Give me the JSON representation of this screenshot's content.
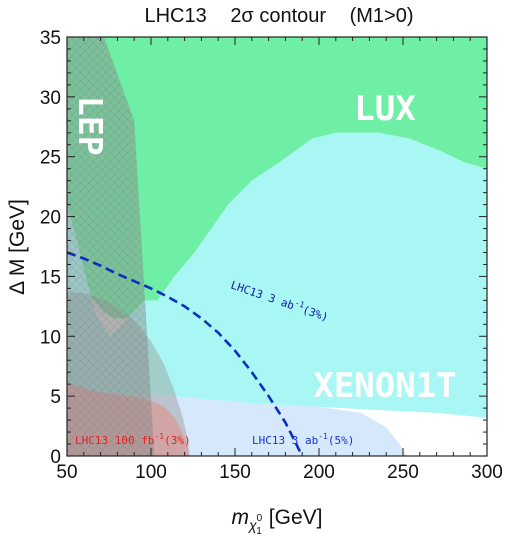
{
  "chart_data": {
    "type": "area",
    "title_parts": {
      "collider": "LHC13",
      "sigma": "2σ contour",
      "sign": "(M1>0)"
    },
    "xlabel": {
      "prefix": "m",
      "sub": "χ",
      "sub_sup": "0",
      "sub_sub": "1",
      "unit": "[GeV]"
    },
    "ylabel": "Δ M [GeV]",
    "xlim": [
      50,
      300
    ],
    "ylim": [
      0,
      35
    ],
    "xticks": [
      "50",
      "100",
      "150",
      "200",
      "250",
      "300"
    ],
    "yticks": [
      "0",
      "5",
      "10",
      "15",
      "20",
      "25",
      "30",
      "35"
    ],
    "grid": false,
    "region_labels": {
      "lux": "LUX",
      "xenon": "XENON1T",
      "lep": "LEP"
    },
    "curve_labels": {
      "lhc100": {
        "base": "LHC13 100 fb",
        "sup": "-1",
        "tail": "(3%)"
      },
      "lhc3ab5": {
        "base": "LHC13 3 ab",
        "sup": "-1",
        "tail": "(5%)"
      },
      "lhc3ab3": {
        "base": "LHC13 3 ab",
        "sup": "-1",
        "tail": "(3%)"
      }
    },
    "regions": {
      "lux": {
        "color": "#6feea6",
        "points": [
          [
            50,
            35
          ],
          [
            300,
            35
          ],
          [
            300,
            24
          ],
          [
            287,
            24.5
          ],
          [
            272,
            25.5
          ],
          [
            254,
            26.5
          ],
          [
            236,
            27
          ],
          [
            210,
            27
          ],
          [
            196,
            26.5
          ],
          [
            176,
            24.5
          ],
          [
            160,
            23
          ],
          [
            146,
            21
          ],
          [
            136,
            19
          ],
          [
            126,
            17
          ],
          [
            114,
            15
          ],
          [
            104,
            13
          ],
          [
            96,
            12
          ],
          [
            86,
            11.5
          ],
          [
            78,
            11.5
          ],
          [
            72,
            12
          ],
          [
            66,
            13
          ],
          [
            58,
            14
          ],
          [
            50,
            14.7
          ]
        ]
      },
      "xenon": {
        "color": "#a8f7f4",
        "points": [
          [
            50,
            21
          ],
          [
            56,
            18
          ],
          [
            62,
            14.5
          ],
          [
            68,
            11.5
          ],
          [
            76,
            10
          ],
          [
            86,
            11.5
          ],
          [
            96,
            13
          ],
          [
            104,
            13
          ],
          [
            114,
            15
          ],
          [
            126,
            17
          ],
          [
            136,
            19
          ],
          [
            146,
            21
          ],
          [
            160,
            23
          ],
          [
            176,
            24.5
          ],
          [
            196,
            26.5
          ],
          [
            210,
            27
          ],
          [
            236,
            27
          ],
          [
            254,
            26.5
          ],
          [
            272,
            25.5
          ],
          [
            287,
            24.5
          ],
          [
            300,
            24
          ],
          [
            300,
            3.2
          ],
          [
            270,
            3.6
          ],
          [
            240,
            3.8
          ],
          [
            200,
            4.1
          ],
          [
            160,
            4.4
          ],
          [
            120,
            4.9
          ],
          [
            100,
            5.2
          ],
          [
            90,
            5.1
          ],
          [
            80,
            4.9
          ],
          [
            70,
            5
          ],
          [
            60,
            5.1
          ],
          [
            50,
            5.1
          ]
        ]
      },
      "lhc3ab5": {
        "color": "#d6e8fb",
        "points": [
          [
            50,
            5.4
          ],
          [
            60,
            5.2
          ],
          [
            70,
            5
          ],
          [
            80,
            4.9
          ],
          [
            90,
            5.1
          ],
          [
            100,
            5.2
          ],
          [
            120,
            4.9
          ],
          [
            160,
            4.4
          ],
          [
            200,
            4.1
          ],
          [
            225,
            3.6
          ],
          [
            240,
            2.4
          ],
          [
            248,
            1
          ],
          [
            252,
            0
          ],
          [
            50,
            0
          ]
        ]
      },
      "lhc100": {
        "color": "#ffb0b0",
        "points": [
          [
            50,
            6
          ],
          [
            56,
            5.9
          ],
          [
            62,
            5.6
          ],
          [
            72,
            5.3
          ],
          [
            82,
            5.1
          ],
          [
            92,
            4.9
          ],
          [
            100,
            4.6
          ],
          [
            108,
            4.1
          ],
          [
            114,
            3.2
          ],
          [
            118,
            2.2
          ],
          [
            121,
            1.2
          ],
          [
            123,
            0
          ],
          [
            50,
            0
          ]
        ]
      },
      "lep": {
        "color": "#8a8a8a",
        "opacity": 0.45,
        "points": [
          [
            50,
            35
          ],
          [
            72,
            35
          ],
          [
            90,
            28
          ],
          [
            102,
            0
          ],
          [
            50,
            0
          ]
        ]
      },
      "lhc_gray": {
        "color": "#9a9a9a",
        "opacity": 0.45,
        "points": [
          [
            50,
            13.7
          ],
          [
            60,
            13.6
          ],
          [
            70,
            13.2
          ],
          [
            80,
            12.4
          ],
          [
            90,
            11.3
          ],
          [
            100,
            9.6
          ],
          [
            108,
            7.6
          ],
          [
            114,
            5.4
          ],
          [
            119,
            3.2
          ],
          [
            122,
            1.3
          ],
          [
            123,
            0
          ],
          [
            50,
            0
          ]
        ]
      }
    },
    "series": [
      {
        "name": "LHC13 3 ab-1 (3%)",
        "style": "dashed",
        "color": "#0b2fc0",
        "x": [
          50,
          60,
          70,
          80,
          90,
          100,
          110,
          120,
          130,
          140,
          150,
          160,
          170,
          180,
          185,
          190
        ],
        "y": [
          17,
          16.5,
          15.9,
          15.2,
          14.6,
          14,
          13.3,
          12.5,
          11.5,
          10.3,
          8.8,
          7,
          5,
          2.8,
          1.4,
          0
        ]
      }
    ]
  }
}
